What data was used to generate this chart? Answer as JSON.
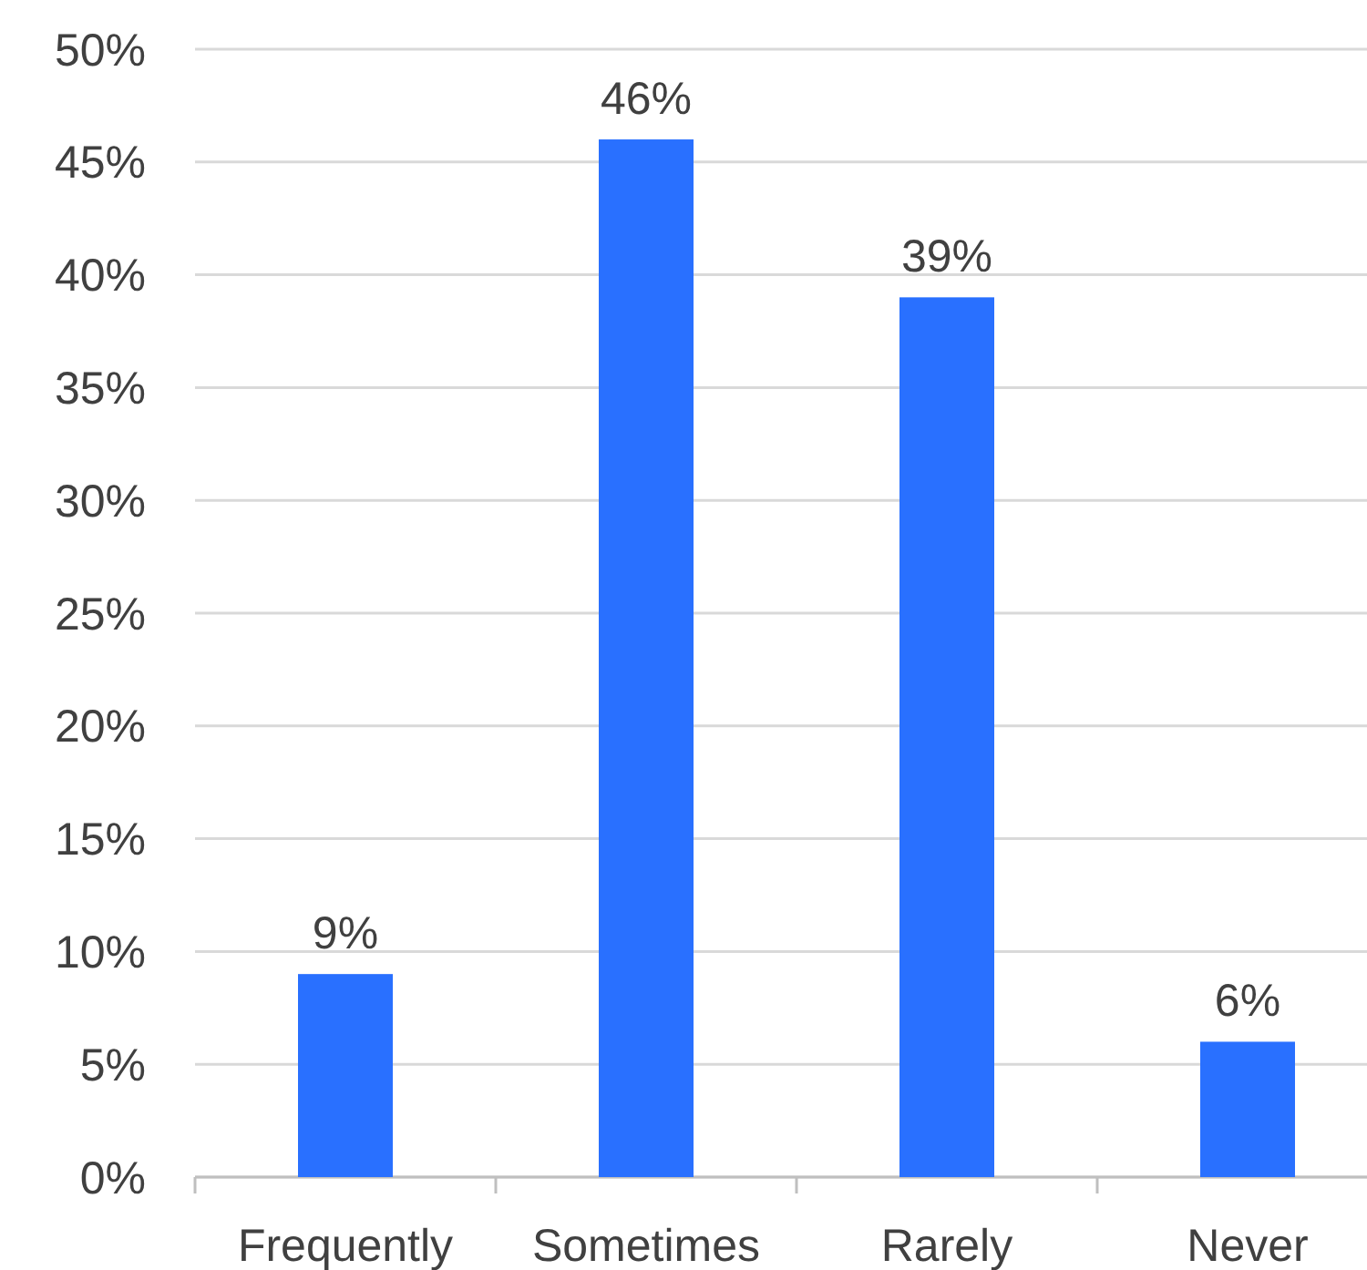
{
  "chart_data": {
    "type": "bar",
    "categories": [
      "Frequently",
      "Sometimes",
      "Rarely",
      "Never"
    ],
    "values": [
      9,
      46,
      39,
      6
    ],
    "color": "#2970ff",
    "value_labels": [
      "9%",
      "46%",
      "39%",
      "6%"
    ],
    "ylim": [
      0,
      50
    ],
    "yticks": [
      {
        "value": 0,
        "label": "0%"
      },
      {
        "value": 5,
        "label": "5%"
      },
      {
        "value": 10,
        "label": "10%"
      },
      {
        "value": 15,
        "label": "15%"
      },
      {
        "value": 20,
        "label": "20%"
      },
      {
        "value": 25,
        "label": "25%"
      },
      {
        "value": 30,
        "label": "30%"
      },
      {
        "value": 35,
        "label": "35%"
      },
      {
        "value": 40,
        "label": "40%"
      },
      {
        "value": 45,
        "label": "45%"
      },
      {
        "value": 50,
        "label": "50%"
      }
    ],
    "grid": "y"
  }
}
